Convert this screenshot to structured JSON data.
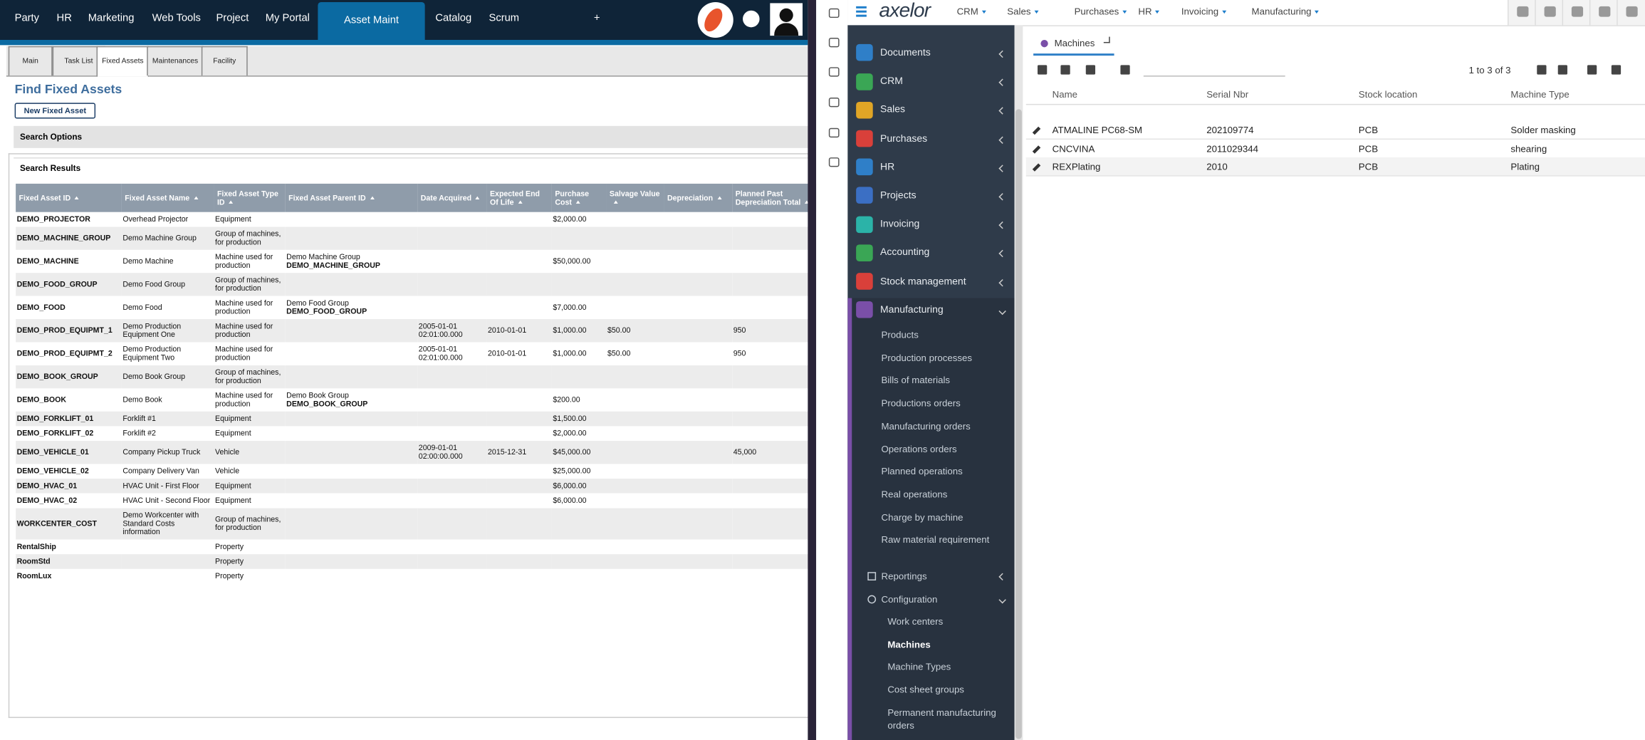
{
  "left": {
    "nav": [
      "Party",
      "HR",
      "Marketing",
      "Web Tools",
      "Project",
      "My Portal",
      "Asset Maint",
      "Catalog",
      "Scrum",
      "+"
    ],
    "tabs": [
      "Main",
      "Task List",
      "Fixed Assets",
      "Maintenances",
      "Facility"
    ],
    "title": "Find Fixed Assets",
    "new_button": "New Fixed Asset",
    "search_options": "Search Options",
    "search_results": "Search Results",
    "table": {
      "columns": [
        "Fixed Asset ID",
        "Fixed Asset Name",
        "Fixed Asset Type ID",
        "Fixed Asset Parent ID",
        "Date Acquired",
        "Expected End Of Life",
        "Purchase Cost",
        "Salvage Value",
        "Depreciation",
        "Planned Past Depreciation Total"
      ],
      "rows": [
        [
          "DEMO_PROJECTOR",
          "Overhead Projector",
          "Equipment",
          null,
          null,
          null,
          "$2,000.00",
          null,
          null,
          null
        ],
        [
          "DEMO_MACHINE_GROUP",
          "Demo Machine Group",
          "Group of machines, for production",
          null,
          null,
          null,
          null,
          null,
          null,
          null
        ],
        [
          "DEMO_MACHINE",
          "Demo Machine",
          "Machine used for production",
          {
            "name": "Demo Machine Group",
            "id": "DEMO_MACHINE_GROUP"
          },
          null,
          null,
          "$50,000.00",
          null,
          null,
          null
        ],
        [
          "DEMO_FOOD_GROUP",
          "Demo Food Group",
          "Group of machines, for production",
          null,
          null,
          null,
          null,
          null,
          null,
          null
        ],
        [
          "DEMO_FOOD",
          "Demo Food",
          "Machine used for production",
          {
            "name": "Demo Food Group",
            "id": "DEMO_FOOD_GROUP"
          },
          null,
          null,
          "$7,000.00",
          null,
          null,
          null
        ],
        [
          "DEMO_PROD_EQUIPMT_1",
          "Demo Production Equipment One",
          "Machine used for production",
          null,
          "2005-01-01 02:01:00.000",
          "2010-01-01",
          "$1,000.00",
          "$50.00",
          null,
          "950"
        ],
        [
          "DEMO_PROD_EQUIPMT_2",
          "Demo Production Equipment Two",
          "Machine used for production",
          null,
          "2005-01-01 02:01:00.000",
          "2010-01-01",
          "$1,000.00",
          "$50.00",
          null,
          "950"
        ],
        [
          "DEMO_BOOK_GROUP",
          "Demo Book Group",
          "Group of machines, for production",
          null,
          null,
          null,
          null,
          null,
          null,
          null
        ],
        [
          "DEMO_BOOK",
          "Demo Book",
          "Machine used for production",
          {
            "name": "Demo Book Group",
            "id": "DEMO_BOOK_GROUP"
          },
          null,
          null,
          "$200.00",
          null,
          null,
          null
        ],
        [
          "DEMO_FORKLIFT_01",
          "Forklift #1",
          "Equipment",
          null,
          null,
          null,
          "$1,500.00",
          null,
          null,
          null
        ],
        [
          "DEMO_FORKLIFT_02",
          "Forklift #2",
          "Equipment",
          null,
          null,
          null,
          "$2,000.00",
          null,
          null,
          null
        ],
        [
          "DEMO_VEHICLE_01",
          "Company Pickup Truck",
          "Vehicle",
          null,
          "2009-01-01 02:00:00.000",
          "2015-12-31",
          "$45,000.00",
          null,
          null,
          "45,000"
        ],
        [
          "DEMO_VEHICLE_02",
          "Company Delivery Van",
          "Vehicle",
          null,
          null,
          null,
          "$25,000.00",
          null,
          null,
          null
        ],
        [
          "DEMO_HVAC_01",
          "HVAC Unit - First Floor",
          "Equipment",
          null,
          null,
          null,
          "$6,000.00",
          null,
          null,
          null
        ],
        [
          "DEMO_HVAC_02",
          "HVAC Unit - Second Floor",
          "Equipment",
          null,
          null,
          null,
          "$6,000.00",
          null,
          null,
          null
        ],
        [
          "WORKCENTER_COST",
          "Demo Workcenter with Standard Costs information",
          "Group of machines, for production",
          null,
          null,
          null,
          null,
          null,
          null,
          null
        ],
        [
          "RentalShip",
          null,
          "Property",
          null,
          null,
          null,
          null,
          null,
          null,
          null
        ],
        [
          "RoomStd",
          null,
          "Property",
          null,
          null,
          null,
          null,
          null,
          null,
          null
        ],
        [
          "RoomLux",
          null,
          "Property",
          null,
          null,
          null,
          null,
          null,
          null,
          null
        ]
      ]
    }
  },
  "right": {
    "logo": "axelor",
    "menu": [
      "CRM",
      "Sales",
      "Purchases",
      "HR",
      "Invoicing",
      "Manufacturing"
    ],
    "sidebar": {
      "modules": [
        "Documents",
        "CRM",
        "Sales",
        "Purchases",
        "HR",
        "Projects",
        "Invoicing",
        "Accounting",
        "Stock management",
        "Manufacturing"
      ],
      "manufacturing_items": [
        "Products",
        "Production processes",
        "Bills of materials",
        "Productions orders",
        "Manufacturing orders",
        "Operations orders",
        "Planned operations",
        "Real operations",
        "Charge by machine",
        "Raw material requirement"
      ],
      "reportings": "Reportings",
      "configuration": "Configuration",
      "configuration_items": [
        "Work centers",
        "Machines",
        "Machine Types",
        "Cost sheet groups",
        "Permanent manufacturing orders"
      ]
    },
    "tab": "Machines",
    "pager": "1 to 3 of 3",
    "grid": {
      "columns": [
        "Name",
        "Serial Nbr",
        "Stock location",
        "Machine Type"
      ],
      "rows": [
        [
          "ATMALINE PC68-SM",
          "202109774",
          "PCB",
          "Solder masking"
        ],
        [
          "CNCVINA",
          "2011029344",
          "PCB",
          "shearing"
        ],
        [
          "REXPlating",
          "2010",
          "PCB",
          "Plating"
        ]
      ]
    }
  }
}
